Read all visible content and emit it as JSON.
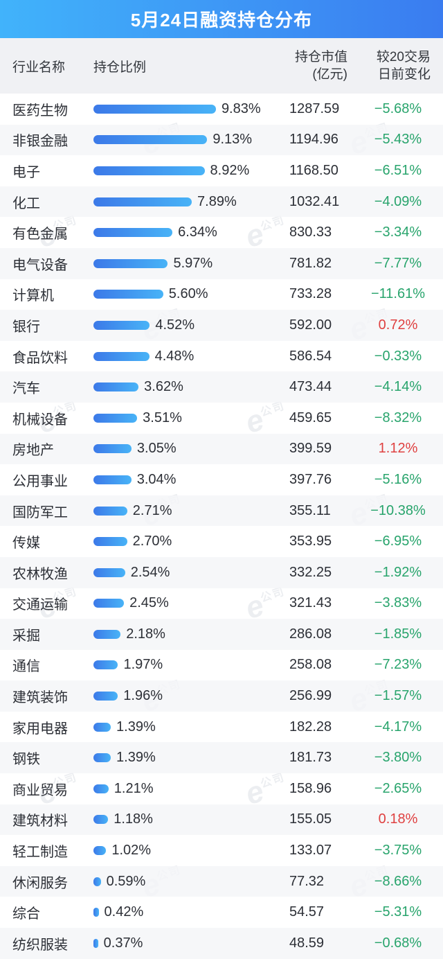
{
  "title": "5月24日融资持仓分布",
  "columns": {
    "industry": "行业名称",
    "ratio": "持仓比例",
    "value_line1": "持仓市值",
    "value_line2": "(亿元)",
    "change_line1": "较20交易",
    "change_line2": "日前变化"
  },
  "watermark": {
    "e": "e",
    "cn": "公司"
  },
  "colors": {
    "header_gradient_left": "#41b3fb",
    "header_gradient_right": "#3a7cf0",
    "bar_gradient_left": "#3c79e8",
    "bar_gradient_right": "#48b3f7",
    "change_negative_green": "#28a46c",
    "change_positive_red": "#df4040",
    "alt_row_bg": "#f4f5f8",
    "col_header_bg": "#f0f1f4"
  },
  "table": {
    "rows": [
      {
        "industry": "医药生物",
        "ratio_pct": 9.83,
        "ratio_label": "9.83%",
        "value": "1287.59",
        "change": "−5.68%",
        "direction": "down"
      },
      {
        "industry": "非银金融",
        "ratio_pct": 9.13,
        "ratio_label": "9.13%",
        "value": "1194.96",
        "change": "−5.43%",
        "direction": "down"
      },
      {
        "industry": "电子",
        "ratio_pct": 8.92,
        "ratio_label": "8.92%",
        "value": "1168.50",
        "change": "−6.51%",
        "direction": "down"
      },
      {
        "industry": "化工",
        "ratio_pct": 7.89,
        "ratio_label": "7.89%",
        "value": "1032.41",
        "change": "−4.09%",
        "direction": "down"
      },
      {
        "industry": "有色金属",
        "ratio_pct": 6.34,
        "ratio_label": "6.34%",
        "value": "830.33",
        "change": "−3.34%",
        "direction": "down"
      },
      {
        "industry": "电气设备",
        "ratio_pct": 5.97,
        "ratio_label": "5.97%",
        "value": "781.82",
        "change": "−7.77%",
        "direction": "down"
      },
      {
        "industry": "计算机",
        "ratio_pct": 5.6,
        "ratio_label": "5.60%",
        "value": "733.28",
        "change": "−11.61%",
        "direction": "down"
      },
      {
        "industry": "银行",
        "ratio_pct": 4.52,
        "ratio_label": "4.52%",
        "value": "592.00",
        "change": "0.72%",
        "direction": "up"
      },
      {
        "industry": "食品饮料",
        "ratio_pct": 4.48,
        "ratio_label": "4.48%",
        "value": "586.54",
        "change": "−0.33%",
        "direction": "down"
      },
      {
        "industry": "汽车",
        "ratio_pct": 3.62,
        "ratio_label": "3.62%",
        "value": "473.44",
        "change": "−4.14%",
        "direction": "down"
      },
      {
        "industry": "机械设备",
        "ratio_pct": 3.51,
        "ratio_label": "3.51%",
        "value": "459.65",
        "change": "−8.32%",
        "direction": "down"
      },
      {
        "industry": "房地产",
        "ratio_pct": 3.05,
        "ratio_label": "3.05%",
        "value": "399.59",
        "change": "1.12%",
        "direction": "up"
      },
      {
        "industry": "公用事业",
        "ratio_pct": 3.04,
        "ratio_label": "3.04%",
        "value": "397.76",
        "change": "−5.16%",
        "direction": "down"
      },
      {
        "industry": "国防军工",
        "ratio_pct": 2.71,
        "ratio_label": "2.71%",
        "value": "355.11",
        "change": "−10.38%",
        "direction": "down"
      },
      {
        "industry": "传媒",
        "ratio_pct": 2.7,
        "ratio_label": "2.70%",
        "value": "353.95",
        "change": "−6.95%",
        "direction": "down"
      },
      {
        "industry": "农林牧渔",
        "ratio_pct": 2.54,
        "ratio_label": "2.54%",
        "value": "332.25",
        "change": "−1.92%",
        "direction": "down"
      },
      {
        "industry": "交通运输",
        "ratio_pct": 2.45,
        "ratio_label": "2.45%",
        "value": "321.43",
        "change": "−3.83%",
        "direction": "down"
      },
      {
        "industry": "采掘",
        "ratio_pct": 2.18,
        "ratio_label": "2.18%",
        "value": "286.08",
        "change": "−1.85%",
        "direction": "down"
      },
      {
        "industry": "通信",
        "ratio_pct": 1.97,
        "ratio_label": "1.97%",
        "value": "258.08",
        "change": "−7.23%",
        "direction": "down"
      },
      {
        "industry": "建筑装饰",
        "ratio_pct": 1.96,
        "ratio_label": "1.96%",
        "value": "256.99",
        "change": "−1.57%",
        "direction": "down"
      },
      {
        "industry": "家用电器",
        "ratio_pct": 1.39,
        "ratio_label": "1.39%",
        "value": "182.28",
        "change": "−4.17%",
        "direction": "down"
      },
      {
        "industry": "钢铁",
        "ratio_pct": 1.39,
        "ratio_label": "1.39%",
        "value": "181.73",
        "change": "−3.80%",
        "direction": "down"
      },
      {
        "industry": "商业贸易",
        "ratio_pct": 1.21,
        "ratio_label": "1.21%",
        "value": "158.96",
        "change": "−2.65%",
        "direction": "down"
      },
      {
        "industry": "建筑材料",
        "ratio_pct": 1.18,
        "ratio_label": "1.18%",
        "value": "155.05",
        "change": "0.18%",
        "direction": "up"
      },
      {
        "industry": "轻工制造",
        "ratio_pct": 1.02,
        "ratio_label": "1.02%",
        "value": "133.07",
        "change": "−3.75%",
        "direction": "down"
      },
      {
        "industry": "休闲服务",
        "ratio_pct": 0.59,
        "ratio_label": "0.59%",
        "value": "77.32",
        "change": "−8.66%",
        "direction": "down"
      },
      {
        "industry": "综合",
        "ratio_pct": 0.42,
        "ratio_label": "0.42%",
        "value": "54.57",
        "change": "−5.31%",
        "direction": "down"
      },
      {
        "industry": "纺织服装",
        "ratio_pct": 0.37,
        "ratio_label": "0.37%",
        "value": "48.59",
        "change": "−0.68%",
        "direction": "down"
      }
    ]
  },
  "chart_data": {
    "type": "bar",
    "orientation": "horizontal",
    "title": "5月24日融资持仓分布",
    "categories": [
      "医药生物",
      "非银金融",
      "电子",
      "化工",
      "有色金属",
      "电气设备",
      "计算机",
      "银行",
      "食品饮料",
      "汽车",
      "机械设备",
      "房地产",
      "公用事业",
      "国防军工",
      "传媒",
      "农林牧渔",
      "交通运输",
      "采掘",
      "通信",
      "建筑装饰",
      "家用电器",
      "钢铁",
      "商业贸易",
      "建筑材料",
      "轻工制造",
      "休闲服务",
      "综合",
      "纺织服装"
    ],
    "series": [
      {
        "name": "持仓比例(%)",
        "values": [
          9.83,
          9.13,
          8.92,
          7.89,
          6.34,
          5.97,
          5.6,
          4.52,
          4.48,
          3.62,
          3.51,
          3.05,
          3.04,
          2.71,
          2.7,
          2.54,
          2.45,
          2.18,
          1.97,
          1.96,
          1.39,
          1.39,
          1.21,
          1.18,
          1.02,
          0.59,
          0.42,
          0.37
        ]
      },
      {
        "name": "持仓市值(亿元)",
        "values": [
          1287.59,
          1194.96,
          1168.5,
          1032.41,
          830.33,
          781.82,
          733.28,
          592.0,
          586.54,
          473.44,
          459.65,
          399.59,
          397.76,
          355.11,
          353.95,
          332.25,
          321.43,
          286.08,
          258.08,
          256.99,
          182.28,
          181.73,
          158.96,
          155.05,
          133.07,
          77.32,
          54.57,
          48.59
        ]
      },
      {
        "name": "较20交易日前变化(%)",
        "values": [
          -5.68,
          -5.43,
          -6.51,
          -4.09,
          -3.34,
          -7.77,
          -11.61,
          0.72,
          -0.33,
          -4.14,
          -8.32,
          1.12,
          -5.16,
          -10.38,
          -6.95,
          -1.92,
          -3.83,
          -1.85,
          -7.23,
          -1.57,
          -4.17,
          -3.8,
          -2.65,
          0.18,
          -3.75,
          -8.66,
          -5.31,
          -0.68
        ]
      }
    ],
    "xlim": [
      0,
      10
    ],
    "bar_color_gradient": [
      "#3c79e8",
      "#48b3f7"
    ],
    "value_label_shown": true,
    "grid": false,
    "legend_position": "none"
  }
}
